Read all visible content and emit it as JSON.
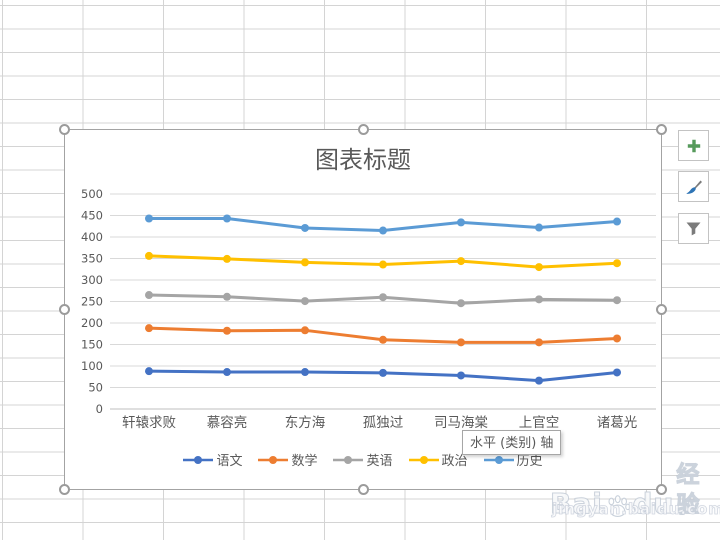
{
  "chart_data": {
    "type": "line",
    "title": "图表标题",
    "categories": [
      "轩辕求败",
      "慕容亮",
      "东方海",
      "孤独过",
      "司马海棠",
      "上官空",
      "诸葛光"
    ],
    "series": [
      {
        "name": "语文",
        "color": "#4472C4",
        "values": [
          88,
          86,
          86,
          84,
          78,
          66,
          85
        ]
      },
      {
        "name": "数学",
        "color": "#ED7D31",
        "values": [
          188,
          182,
          183,
          161,
          155,
          155,
          164
        ]
      },
      {
        "name": "英语",
        "color": "#A5A5A5",
        "values": [
          265,
          261,
          251,
          260,
          246,
          255,
          253
        ]
      },
      {
        "name": "政治",
        "color": "#FFC000",
        "values": [
          356,
          349,
          341,
          336,
          344,
          330,
          339
        ]
      },
      {
        "name": "历史",
        "color": "#5B9BD5",
        "values": [
          443,
          443,
          421,
          415,
          434,
          422,
          436
        ]
      }
    ],
    "ylim": [
      0,
      500
    ],
    "yticks": [
      0,
      50,
      100,
      150,
      200,
      250,
      300,
      350,
      400,
      450,
      500
    ],
    "grid": true,
    "legend_position": "bottom",
    "colors": {
      "gridline": "#D9D9D9",
      "axis_line": "#BFBFBF",
      "text": "#595959"
    }
  },
  "tooltip": {
    "text": "水平 (类别) 轴"
  },
  "side_panel": {
    "buttons": [
      {
        "icon": "plus-icon",
        "color": "#569A5B"
      },
      {
        "icon": "brush-icon",
        "color": "#2E74B5"
      },
      {
        "icon": "funnel-icon",
        "color": "#7B7B7B"
      }
    ]
  },
  "watermark": {
    "brand_prefix": "Bai",
    "brand_suffix": "du",
    "brand_cn": "经验",
    "url": "jingyan.baidu.com"
  }
}
